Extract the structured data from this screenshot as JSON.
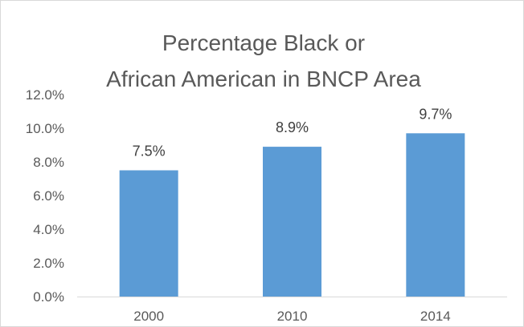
{
  "chart_data": {
    "type": "bar",
    "title_lines": [
      "Percentage Black or",
      "African American in BNCP Area"
    ],
    "categories": [
      "2000",
      "2010",
      "2014"
    ],
    "values": [
      7.5,
      8.9,
      9.7
    ],
    "data_labels": [
      "7.5%",
      "8.9%",
      "9.7%"
    ],
    "y_ticks": [
      "0.0%",
      "2.0%",
      "4.0%",
      "6.0%",
      "8.0%",
      "10.0%",
      "12.0%"
    ],
    "ylim": [
      0,
      12
    ],
    "y_tick_step": 2,
    "xlabel": "",
    "ylabel": "",
    "grid": false,
    "legend": "none",
    "bar_color": "#5b9bd5",
    "axis_color": "#d9d9d9"
  }
}
